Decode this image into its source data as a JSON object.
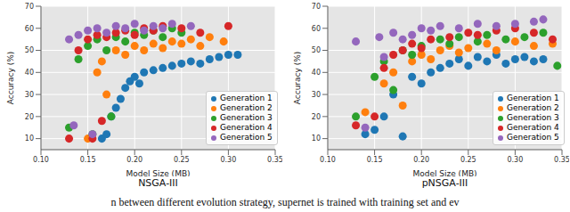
{
  "chart_data": [
    {
      "type": "scatter",
      "title": "NSGA-III",
      "x_label": "Model Size (MB)",
      "y_label": "Accuracy (%)",
      "xlim": [
        0.1,
        0.35
      ],
      "xticks": [
        {
          "value": 0.1,
          "label": "0.10"
        },
        {
          "value": 0.15,
          "label": "0.15"
        },
        {
          "value": 0.2,
          "label": "0.20"
        },
        {
          "value": 0.25,
          "label": "0.25"
        },
        {
          "value": 0.3,
          "label": "0.30"
        },
        {
          "value": 0.35,
          "label": "0.35"
        }
      ],
      "ylim": [
        5,
        70
      ],
      "yticks": [
        10,
        20,
        30,
        40,
        50,
        60,
        70
      ],
      "grid": true,
      "legend": "lower right",
      "series": [
        {
          "name": "Generation 1",
          "color": "#1f77b4",
          "marker": "o",
          "x": [
            0.165,
            0.17,
            0.175,
            0.18,
            0.185,
            0.19,
            0.195,
            0.2,
            0.205,
            0.21,
            0.22,
            0.23,
            0.24,
            0.25,
            0.26,
            0.27,
            0.28,
            0.29,
            0.3,
            0.31
          ],
          "values": [
            10,
            12,
            20,
            24,
            28,
            33,
            36,
            38,
            35,
            40,
            41,
            42,
            43,
            44,
            45,
            44,
            46,
            47,
            48,
            48
          ]
        },
        {
          "name": "Generation 2",
          "color": "#ff7f0e",
          "marker": "o",
          "x": [
            0.15,
            0.16,
            0.165,
            0.17,
            0.18,
            0.19,
            0.2,
            0.21,
            0.22,
            0.23,
            0.24,
            0.25,
            0.26,
            0.27,
            0.28,
            0.295
          ],
          "values": [
            10,
            40,
            45,
            30,
            50,
            48,
            52,
            50,
            53,
            51,
            54,
            53,
            55,
            52,
            56,
            54
          ]
        },
        {
          "name": "Generation 3",
          "color": "#2ca02c",
          "marker": "o",
          "x": [
            0.13,
            0.14,
            0.15,
            0.155,
            0.16,
            0.17,
            0.175,
            0.18,
            0.19,
            0.2,
            0.21,
            0.22,
            0.23,
            0.24,
            0.25
          ],
          "values": [
            15,
            46,
            52,
            12,
            55,
            50,
            20,
            56,
            54,
            58,
            57,
            59,
            56,
            60,
            58
          ]
        },
        {
          "name": "Generation 4",
          "color": "#d62728",
          "marker": "o",
          "x": [
            0.13,
            0.14,
            0.15,
            0.155,
            0.16,
            0.165,
            0.17,
            0.18,
            0.19,
            0.2,
            0.21,
            0.22,
            0.23,
            0.25,
            0.27,
            0.3
          ],
          "values": [
            10,
            50,
            55,
            10,
            57,
            18,
            56,
            58,
            59,
            57,
            60,
            59,
            61,
            60,
            58,
            61
          ]
        },
        {
          "name": "Generation 5",
          "color": "#9467bd",
          "marker": "o",
          "x": [
            0.13,
            0.135,
            0.14,
            0.15,
            0.155,
            0.16,
            0.17,
            0.18,
            0.19,
            0.2,
            0.21,
            0.22,
            0.23,
            0.24,
            0.26
          ],
          "values": [
            55,
            16,
            57,
            59,
            12,
            60,
            58,
            61,
            60,
            62,
            59,
            61,
            60,
            62,
            61
          ]
        }
      ]
    },
    {
      "type": "scatter",
      "title": "pNSGA-III",
      "x_label": "Model Size (MB)",
      "y_label": "Accuracy (%)",
      "xlim": [
        0.1,
        0.35
      ],
      "xticks": [
        {
          "value": 0.1,
          "label": "0.10"
        },
        {
          "value": 0.15,
          "label": "0.15"
        },
        {
          "value": 0.2,
          "label": "0.20"
        },
        {
          "value": 0.25,
          "label": "0.25"
        },
        {
          "value": 0.3,
          "label": "0.30"
        },
        {
          "value": 0.35,
          "label": "0.35"
        }
      ],
      "ylim": [
        5,
        70
      ],
      "yticks": [
        10,
        20,
        30,
        40,
        50,
        60,
        70
      ],
      "grid": true,
      "legend": "lower right",
      "series": [
        {
          "name": "Generation 1",
          "color": "#1f77b4",
          "marker": "o",
          "x": [
            0.14,
            0.15,
            0.16,
            0.17,
            0.18,
            0.19,
            0.2,
            0.21,
            0.22,
            0.23,
            0.24,
            0.25,
            0.26,
            0.27,
            0.28,
            0.29,
            0.3,
            0.31,
            0.32,
            0.33
          ],
          "values": [
            12,
            14,
            20,
            30,
            11,
            38,
            35,
            40,
            42,
            44,
            46,
            43,
            47,
            45,
            48,
            44,
            46,
            47,
            45,
            46
          ]
        },
        {
          "name": "Generation 2",
          "color": "#ff7f0e",
          "marker": "o",
          "x": [
            0.14,
            0.16,
            0.17,
            0.18,
            0.19,
            0.2,
            0.21,
            0.22,
            0.23,
            0.24,
            0.25,
            0.27,
            0.28,
            0.3,
            0.32,
            0.34
          ],
          "values": [
            22,
            35,
            40,
            25,
            45,
            48,
            46,
            50,
            52,
            49,
            51,
            53,
            50,
            54,
            52,
            53
          ]
        },
        {
          "name": "Generation 3",
          "color": "#2ca02c",
          "marker": "o",
          "x": [
            0.13,
            0.15,
            0.16,
            0.17,
            0.18,
            0.19,
            0.2,
            0.22,
            0.23,
            0.24,
            0.26,
            0.27,
            0.29,
            0.31,
            0.33,
            0.345
          ],
          "values": [
            20,
            38,
            45,
            32,
            50,
            48,
            52,
            55,
            53,
            56,
            54,
            57,
            55,
            56,
            58,
            43
          ]
        },
        {
          "name": "Generation 4",
          "color": "#d62728",
          "marker": "o",
          "x": [
            0.13,
            0.15,
            0.16,
            0.17,
            0.18,
            0.19,
            0.2,
            0.21,
            0.23,
            0.25,
            0.26,
            0.28,
            0.3,
            0.32,
            0.34
          ],
          "values": [
            16,
            20,
            42,
            48,
            50,
            53,
            51,
            55,
            56,
            58,
            57,
            59,
            60,
            58,
            55
          ]
        },
        {
          "name": "Generation 5",
          "color": "#9467bd",
          "marker": "o",
          "x": [
            0.13,
            0.14,
            0.155,
            0.16,
            0.17,
            0.18,
            0.19,
            0.2,
            0.21,
            0.22,
            0.24,
            0.26,
            0.28,
            0.3,
            0.32,
            0.33
          ],
          "values": [
            54,
            15,
            56,
            47,
            58,
            55,
            57,
            60,
            59,
            61,
            60,
            62,
            61,
            62,
            63,
            64
          ]
        }
      ]
    }
  ],
  "caption": "n between different evolution strategy, supernet is trained with training set and ev"
}
